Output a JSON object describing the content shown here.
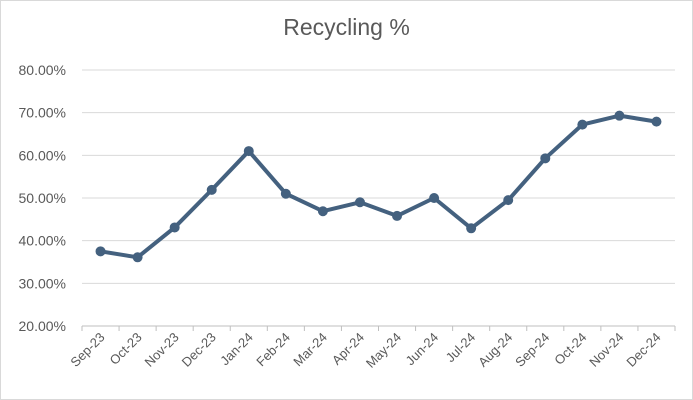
{
  "chart_data": {
    "type": "line",
    "title": "Recycling %",
    "xlabel": "",
    "ylabel": "",
    "categories": [
      "Sep-23",
      "Oct-23",
      "Nov-23",
      "Dec-23",
      "Jan-24",
      "Feb-24",
      "Mar-24",
      "Apr-24",
      "May-24",
      "Jun-24",
      "Jul-24",
      "Aug-24",
      "Sep-24",
      "Oct-24",
      "Nov-24",
      "Dec-24"
    ],
    "series": [
      {
        "values": [
          37.5,
          36.1,
          43.1,
          51.9,
          61.0,
          51.0,
          46.9,
          49.0,
          45.8,
          50.0,
          42.9,
          49.5,
          59.3,
          67.2,
          69.3,
          67.9
        ]
      }
    ],
    "ylim": [
      20,
      80
    ],
    "yticks": [
      "20.00%",
      "30.00%",
      "40.00%",
      "50.00%",
      "60.00%",
      "70.00%",
      "80.00%"
    ],
    "grid": true,
    "legend": "none",
    "line_color": "#44617f",
    "grid_color": "#d9d9d9",
    "text_color": "#595959"
  }
}
